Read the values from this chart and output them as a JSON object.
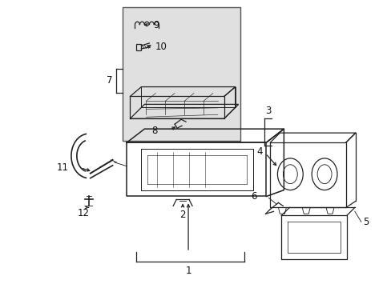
{
  "background_color": "#ffffff",
  "label_color": "#111111",
  "line_color": "#222222",
  "part_color": "#222222",
  "inset_bg": "#e0e0e0",
  "linewidth": 0.9,
  "figsize": [
    4.89,
    3.6
  ],
  "dpi": 100
}
